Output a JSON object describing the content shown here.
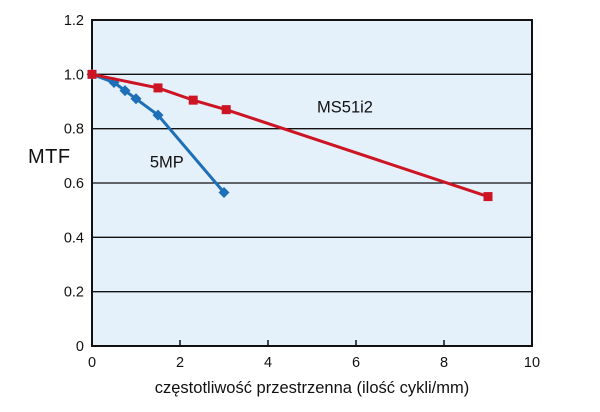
{
  "chart_data": {
    "type": "line",
    "title": "",
    "xlabel": "częstotliwość przestrzenna (ilość cykli/mm)",
    "ylabel": "MTF",
    "xlim": [
      0,
      10
    ],
    "ylim": [
      0,
      1.2
    ],
    "x_ticks": [
      0,
      2,
      4,
      6,
      8,
      10
    ],
    "x_tick_labels": [
      "0",
      "2",
      "4",
      "6",
      "8",
      "10"
    ],
    "y_ticks": [
      0,
      0.2,
      0.4,
      0.6,
      0.8,
      1.0,
      1.2
    ],
    "y_tick_labels": [
      "0",
      "0.2",
      "0.4",
      "0.6",
      "0.8",
      "1.0",
      "1.2"
    ],
    "grid": "horizontal",
    "legend_position": "inline-annotations",
    "colors": {
      "plot_background": "#E4F0FA",
      "axis": "#111111",
      "red_series": "#CC1423",
      "blue_series": "#1D6FB8"
    },
    "series": [
      {
        "name": "5MP",
        "color": "#1D6FB8",
        "marker": "diamond",
        "points": [
          [
            0,
            1.0
          ],
          [
            0.5,
            0.97
          ],
          [
            0.75,
            0.94
          ],
          [
            1.0,
            0.91
          ],
          [
            1.5,
            0.85
          ],
          [
            3.0,
            0.565
          ]
        ]
      },
      {
        "name": "MS51i2",
        "color": "#CC1423",
        "marker": "square",
        "points": [
          [
            0,
            1.0
          ],
          [
            1.5,
            0.95
          ],
          [
            2.3,
            0.905
          ],
          [
            3.05,
            0.87
          ],
          [
            9,
            0.55
          ]
        ]
      }
    ],
    "annotations": [
      {
        "text": "MS51i2",
        "x": 5.75,
        "y": 0.875
      },
      {
        "text": "5MP",
        "x": 1.7,
        "y": 0.675
      }
    ]
  }
}
